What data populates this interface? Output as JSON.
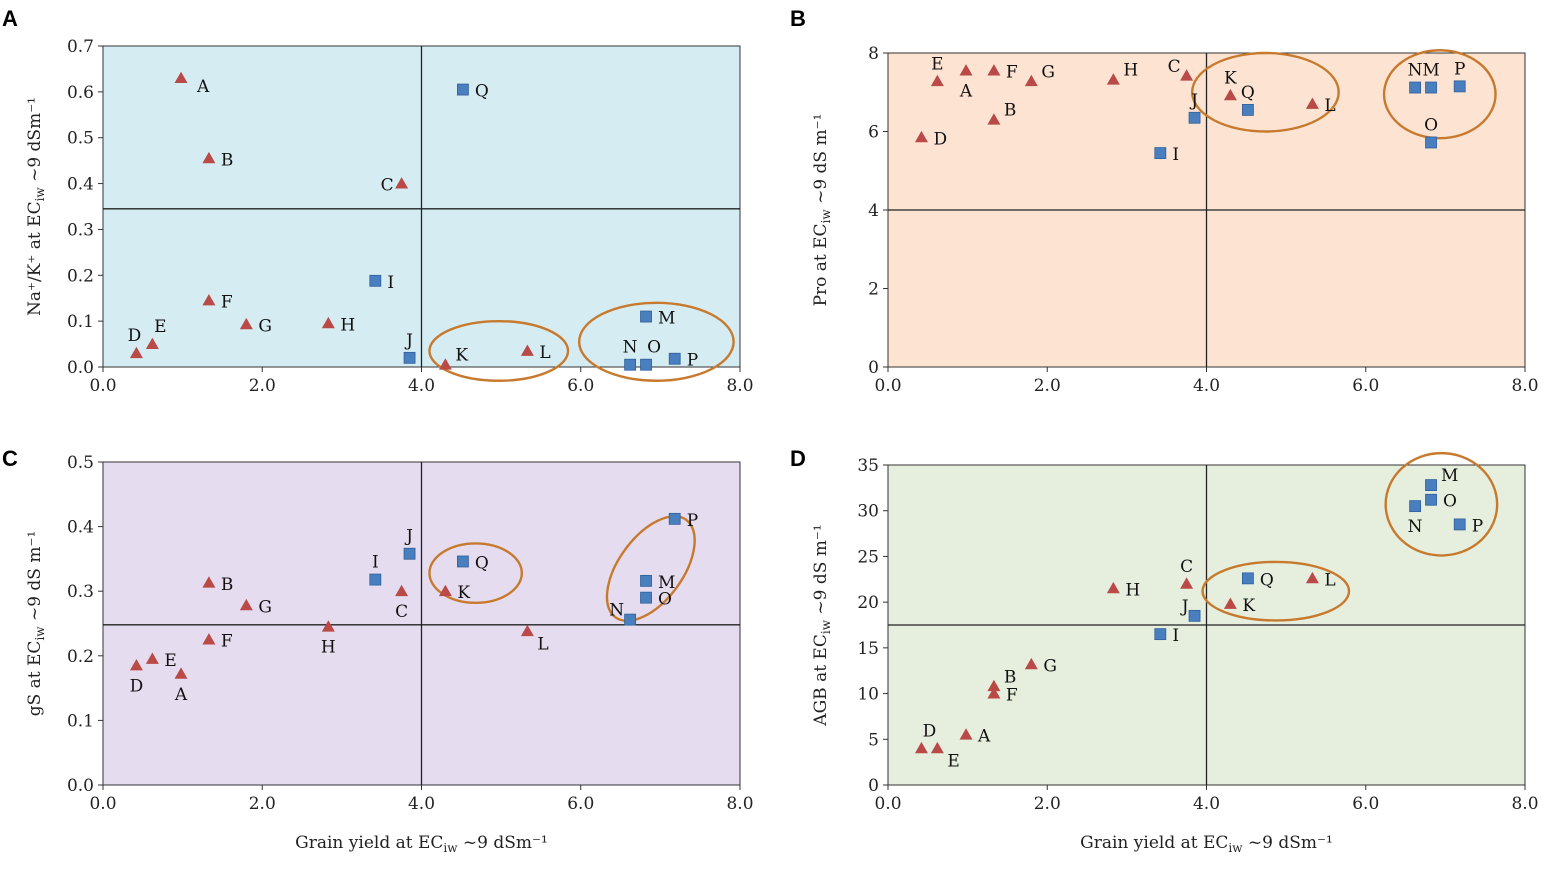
{
  "colors": {
    "triangle": "#b94a48",
    "square": "#4a7fbf",
    "square_edge": "#2f5f9a",
    "circle": "#c77a2e",
    "axis": "#333333"
  },
  "chart_data": [
    {
      "panel": "A",
      "type": "scatter",
      "bg": "#d6ecf3",
      "xlabel": "",
      "ylabel": "Na⁺/K⁺ at EC_iw ~9 dSm⁻¹",
      "xlim": [
        0,
        8
      ],
      "ylim": [
        0,
        0.7
      ],
      "xticks": [
        "0.0",
        "2.0",
        "4.0",
        "6.0",
        "8.0"
      ],
      "xtick_values": [
        0,
        2,
        4,
        6,
        8
      ],
      "yticks": [
        "0.0",
        "0.1",
        "0.2",
        "0.3",
        "0.4",
        "0.5",
        "0.6",
        "0.7"
      ],
      "ytick_values": [
        0,
        0.1,
        0.2,
        0.3,
        0.4,
        0.5,
        0.6,
        0.7
      ],
      "hline": 0.345,
      "vline": 4.0,
      "points": [
        {
          "label": "A",
          "x": 0.98,
          "y": 0.63,
          "marker": "triangle",
          "pos": "r-below"
        },
        {
          "label": "B",
          "x": 1.33,
          "y": 0.455,
          "marker": "triangle",
          "pos": "r"
        },
        {
          "label": "C",
          "x": 3.75,
          "y": 0.4,
          "marker": "triangle",
          "pos": "l"
        },
        {
          "label": "D",
          "x": 0.42,
          "y": 0.03,
          "marker": "triangle",
          "pos": "above-l"
        },
        {
          "label": "E",
          "x": 0.62,
          "y": 0.05,
          "marker": "triangle",
          "pos": "above-r"
        },
        {
          "label": "F",
          "x": 1.33,
          "y": 0.145,
          "marker": "triangle",
          "pos": "r"
        },
        {
          "label": "G",
          "x": 1.8,
          "y": 0.093,
          "marker": "triangle",
          "pos": "r"
        },
        {
          "label": "H",
          "x": 2.83,
          "y": 0.095,
          "marker": "triangle",
          "pos": "r"
        },
        {
          "label": "I",
          "x": 3.42,
          "y": 0.188,
          "marker": "square",
          "pos": "r"
        },
        {
          "label": "J",
          "x": 3.85,
          "y": 0.02,
          "marker": "square",
          "pos": "above"
        },
        {
          "label": "K",
          "x": 4.3,
          "y": 0.005,
          "marker": "triangle",
          "pos": "r-up"
        },
        {
          "label": "L",
          "x": 5.33,
          "y": 0.035,
          "marker": "triangle",
          "pos": "r"
        },
        {
          "label": "M",
          "x": 6.82,
          "y": 0.11,
          "marker": "square",
          "pos": "r"
        },
        {
          "label": "N",
          "x": 6.62,
          "y": 0.005,
          "marker": "square",
          "pos": "above"
        },
        {
          "label": "O",
          "x": 6.82,
          "y": 0.005,
          "marker": "square",
          "pos": "above-r"
        },
        {
          "label": "P",
          "x": 7.18,
          "y": 0.018,
          "marker": "square",
          "pos": "r"
        },
        {
          "label": "Q",
          "x": 4.52,
          "y": 0.605,
          "marker": "square",
          "pos": "r"
        }
      ],
      "ellipses": [
        {
          "cx": 4.97,
          "cy": 0.035,
          "rx": 0.87,
          "ry": 0.065
        },
        {
          "cx": 6.95,
          "cy": 0.055,
          "rx": 0.97,
          "ry": 0.085
        }
      ]
    },
    {
      "panel": "B",
      "type": "scatter",
      "bg": "#fde3d2",
      "xlabel": "",
      "ylabel": "Pro at EC_iw ~9 dS m⁻¹",
      "xlim": [
        0,
        8
      ],
      "ylim": [
        0,
        8
      ],
      "xticks": [
        "0.0",
        "2.0",
        "4.0",
        "6.0",
        "8.0"
      ],
      "xtick_values": [
        0,
        2,
        4,
        6,
        8
      ],
      "yticks": [
        "0",
        "2",
        "4",
        "6",
        "8"
      ],
      "ytick_values": [
        0,
        2,
        4,
        6,
        8
      ],
      "hline": 4.0,
      "vline": 4.0,
      "points": [
        {
          "label": "A",
          "x": 0.98,
          "y": 7.55,
          "marker": "triangle",
          "pos": "below"
        },
        {
          "label": "B",
          "x": 1.33,
          "y": 6.3,
          "marker": "triangle",
          "pos": "r-up"
        },
        {
          "label": "C",
          "x": 3.75,
          "y": 7.42,
          "marker": "triangle",
          "pos": "l-up"
        },
        {
          "label": "D",
          "x": 0.42,
          "y": 5.85,
          "marker": "triangle",
          "pos": "r"
        },
        {
          "label": "E",
          "x": 0.62,
          "y": 7.28,
          "marker": "triangle",
          "pos": "above"
        },
        {
          "label": "F",
          "x": 1.33,
          "y": 7.55,
          "marker": "triangle",
          "pos": "r"
        },
        {
          "label": "G",
          "x": 1.8,
          "y": 7.28,
          "marker": "triangle",
          "pos": "r-up"
        },
        {
          "label": "H",
          "x": 2.83,
          "y": 7.32,
          "marker": "triangle",
          "pos": "r-up"
        },
        {
          "label": "I",
          "x": 3.42,
          "y": 5.45,
          "marker": "square",
          "pos": "r"
        },
        {
          "label": "J",
          "x": 3.85,
          "y": 6.35,
          "marker": "square",
          "pos": "above"
        },
        {
          "label": "K",
          "x": 4.3,
          "y": 6.92,
          "marker": "triangle",
          "pos": "above"
        },
        {
          "label": "L",
          "x": 5.33,
          "y": 6.7,
          "marker": "triangle",
          "pos": "r"
        },
        {
          "label": "M",
          "x": 6.82,
          "y": 7.12,
          "marker": "square",
          "pos": "above"
        },
        {
          "label": "N",
          "x": 6.62,
          "y": 7.12,
          "marker": "square",
          "pos": "above"
        },
        {
          "label": "O",
          "x": 6.82,
          "y": 5.72,
          "marker": "square",
          "pos": "above"
        },
        {
          "label": "P",
          "x": 7.18,
          "y": 7.15,
          "marker": "square",
          "pos": "above"
        },
        {
          "label": "Q",
          "x": 4.52,
          "y": 6.55,
          "marker": "square",
          "pos": "above"
        }
      ],
      "ellipses": [
        {
          "cx": 4.74,
          "cy": 7.0,
          "rx": 0.92,
          "ry": 1.0
        },
        {
          "cx": 6.93,
          "cy": 6.95,
          "rx": 0.7,
          "ry": 1.12
        }
      ]
    },
    {
      "panel": "C",
      "type": "scatter",
      "bg": "#e6dcef",
      "xlabel": "Grain yield at EC_iw ~9 dSm⁻¹",
      "ylabel": "gS at EC_iw ~9 dS m⁻¹",
      "xlim": [
        0,
        8
      ],
      "ylim": [
        0,
        0.5
      ],
      "xticks": [
        "0.0",
        "2.0",
        "4.0",
        "6.0",
        "8.0"
      ],
      "xtick_values": [
        0,
        2,
        4,
        6,
        8
      ],
      "yticks": [
        "0.0",
        "0.1",
        "0.2",
        "0.3",
        "0.4",
        "0.5"
      ],
      "ytick_values": [
        0,
        0.1,
        0.2,
        0.3,
        0.4,
        0.5
      ],
      "hline": 0.248,
      "vline": 4.0,
      "points": [
        {
          "label": "A",
          "x": 0.98,
          "y": 0.172,
          "marker": "triangle",
          "pos": "below"
        },
        {
          "label": "B",
          "x": 1.33,
          "y": 0.313,
          "marker": "triangle",
          "pos": "r"
        },
        {
          "label": "C",
          "x": 3.75,
          "y": 0.3,
          "marker": "triangle",
          "pos": "below"
        },
        {
          "label": "D",
          "x": 0.42,
          "y": 0.185,
          "marker": "triangle",
          "pos": "below"
        },
        {
          "label": "E",
          "x": 0.62,
          "y": 0.195,
          "marker": "triangle",
          "pos": "r"
        },
        {
          "label": "F",
          "x": 1.33,
          "y": 0.225,
          "marker": "triangle",
          "pos": "r"
        },
        {
          "label": "G",
          "x": 1.8,
          "y": 0.278,
          "marker": "triangle",
          "pos": "r"
        },
        {
          "label": "H",
          "x": 2.83,
          "y": 0.245,
          "marker": "triangle",
          "pos": "below"
        },
        {
          "label": "I",
          "x": 3.42,
          "y": 0.318,
          "marker": "square",
          "pos": "above"
        },
        {
          "label": "J",
          "x": 3.85,
          "y": 0.358,
          "marker": "square",
          "pos": "above"
        },
        {
          "label": "K",
          "x": 4.3,
          "y": 0.3,
          "marker": "triangle",
          "pos": "r"
        },
        {
          "label": "L",
          "x": 5.33,
          "y": 0.238,
          "marker": "triangle",
          "pos": "r-down"
        },
        {
          "label": "M",
          "x": 6.82,
          "y": 0.316,
          "marker": "square",
          "pos": "r"
        },
        {
          "label": "N",
          "x": 6.62,
          "y": 0.256,
          "marker": "square",
          "pos": "l-up"
        },
        {
          "label": "O",
          "x": 6.82,
          "y": 0.29,
          "marker": "square",
          "pos": "r"
        },
        {
          "label": "P",
          "x": 7.18,
          "y": 0.412,
          "marker": "square",
          "pos": "r"
        },
        {
          "label": "Q",
          "x": 4.52,
          "y": 0.346,
          "marker": "square",
          "pos": "r"
        }
      ],
      "ellipses": [
        {
          "cx": 4.68,
          "cy": 0.328,
          "rx": 0.58,
          "ry": 0.046,
          "rot": 0
        },
        {
          "cx": 6.88,
          "cy": 0.335,
          "rx": 1.22,
          "ry": 0.048,
          "rot": -54
        }
      ]
    },
    {
      "panel": "D",
      "type": "scatter",
      "bg": "#e6efdd",
      "xlabel": "Grain yield at EC_iw ~9 dSm⁻¹",
      "ylabel": "AGB at EC_iw ~9 dS m⁻¹",
      "xlim": [
        0,
        8
      ],
      "ylim": [
        0,
        35
      ],
      "xticks": [
        "0.0",
        "2.0",
        "4.0",
        "6.0",
        "8.0"
      ],
      "xtick_values": [
        0,
        2,
        4,
        6,
        8
      ],
      "yticks": [
        "0",
        "5",
        "10",
        "15",
        "20",
        "25",
        "30",
        "35"
      ],
      "ytick_values": [
        0,
        5,
        10,
        15,
        20,
        25,
        30,
        35
      ],
      "hline": 17.5,
      "vline": 4.0,
      "points": [
        {
          "label": "A",
          "x": 0.98,
          "y": 5.5,
          "marker": "triangle",
          "pos": "r"
        },
        {
          "label": "B",
          "x": 1.33,
          "y": 10.8,
          "marker": "triangle",
          "pos": "r-up"
        },
        {
          "label": "C",
          "x": 3.75,
          "y": 22.0,
          "marker": "triangle",
          "pos": "above"
        },
        {
          "label": "D",
          "x": 0.42,
          "y": 4.0,
          "marker": "triangle",
          "pos": "above-r"
        },
        {
          "label": "E",
          "x": 0.62,
          "y": 4.0,
          "marker": "triangle",
          "pos": "r-down"
        },
        {
          "label": "F",
          "x": 1.33,
          "y": 10.0,
          "marker": "triangle",
          "pos": "r"
        },
        {
          "label": "G",
          "x": 1.8,
          "y": 13.2,
          "marker": "triangle",
          "pos": "r"
        },
        {
          "label": "H",
          "x": 2.83,
          "y": 21.5,
          "marker": "triangle",
          "pos": "r"
        },
        {
          "label": "I",
          "x": 3.42,
          "y": 16.5,
          "marker": "square",
          "pos": "r"
        },
        {
          "label": "J",
          "x": 3.85,
          "y": 18.5,
          "marker": "square",
          "pos": "l-up"
        },
        {
          "label": "K",
          "x": 4.3,
          "y": 19.8,
          "marker": "triangle",
          "pos": "r"
        },
        {
          "label": "L",
          "x": 5.33,
          "y": 22.6,
          "marker": "triangle",
          "pos": "r"
        },
        {
          "label": "M",
          "x": 6.82,
          "y": 32.8,
          "marker": "square",
          "pos": "r-up"
        },
        {
          "label": "N",
          "x": 6.62,
          "y": 30.5,
          "marker": "square",
          "pos": "below"
        },
        {
          "label": "O",
          "x": 6.82,
          "y": 31.2,
          "marker": "square",
          "pos": "r"
        },
        {
          "label": "P",
          "x": 7.18,
          "y": 28.5,
          "marker": "square",
          "pos": "r"
        },
        {
          "label": "Q",
          "x": 4.52,
          "y": 22.6,
          "marker": "square",
          "pos": "r"
        }
      ],
      "ellipses": [
        {
          "cx": 4.87,
          "cy": 21.2,
          "rx": 0.92,
          "ry": 3.2,
          "rot": 0
        },
        {
          "cx": 6.95,
          "cy": 30.7,
          "rx": 0.7,
          "ry": 5.6,
          "rot": 0
        }
      ]
    }
  ]
}
